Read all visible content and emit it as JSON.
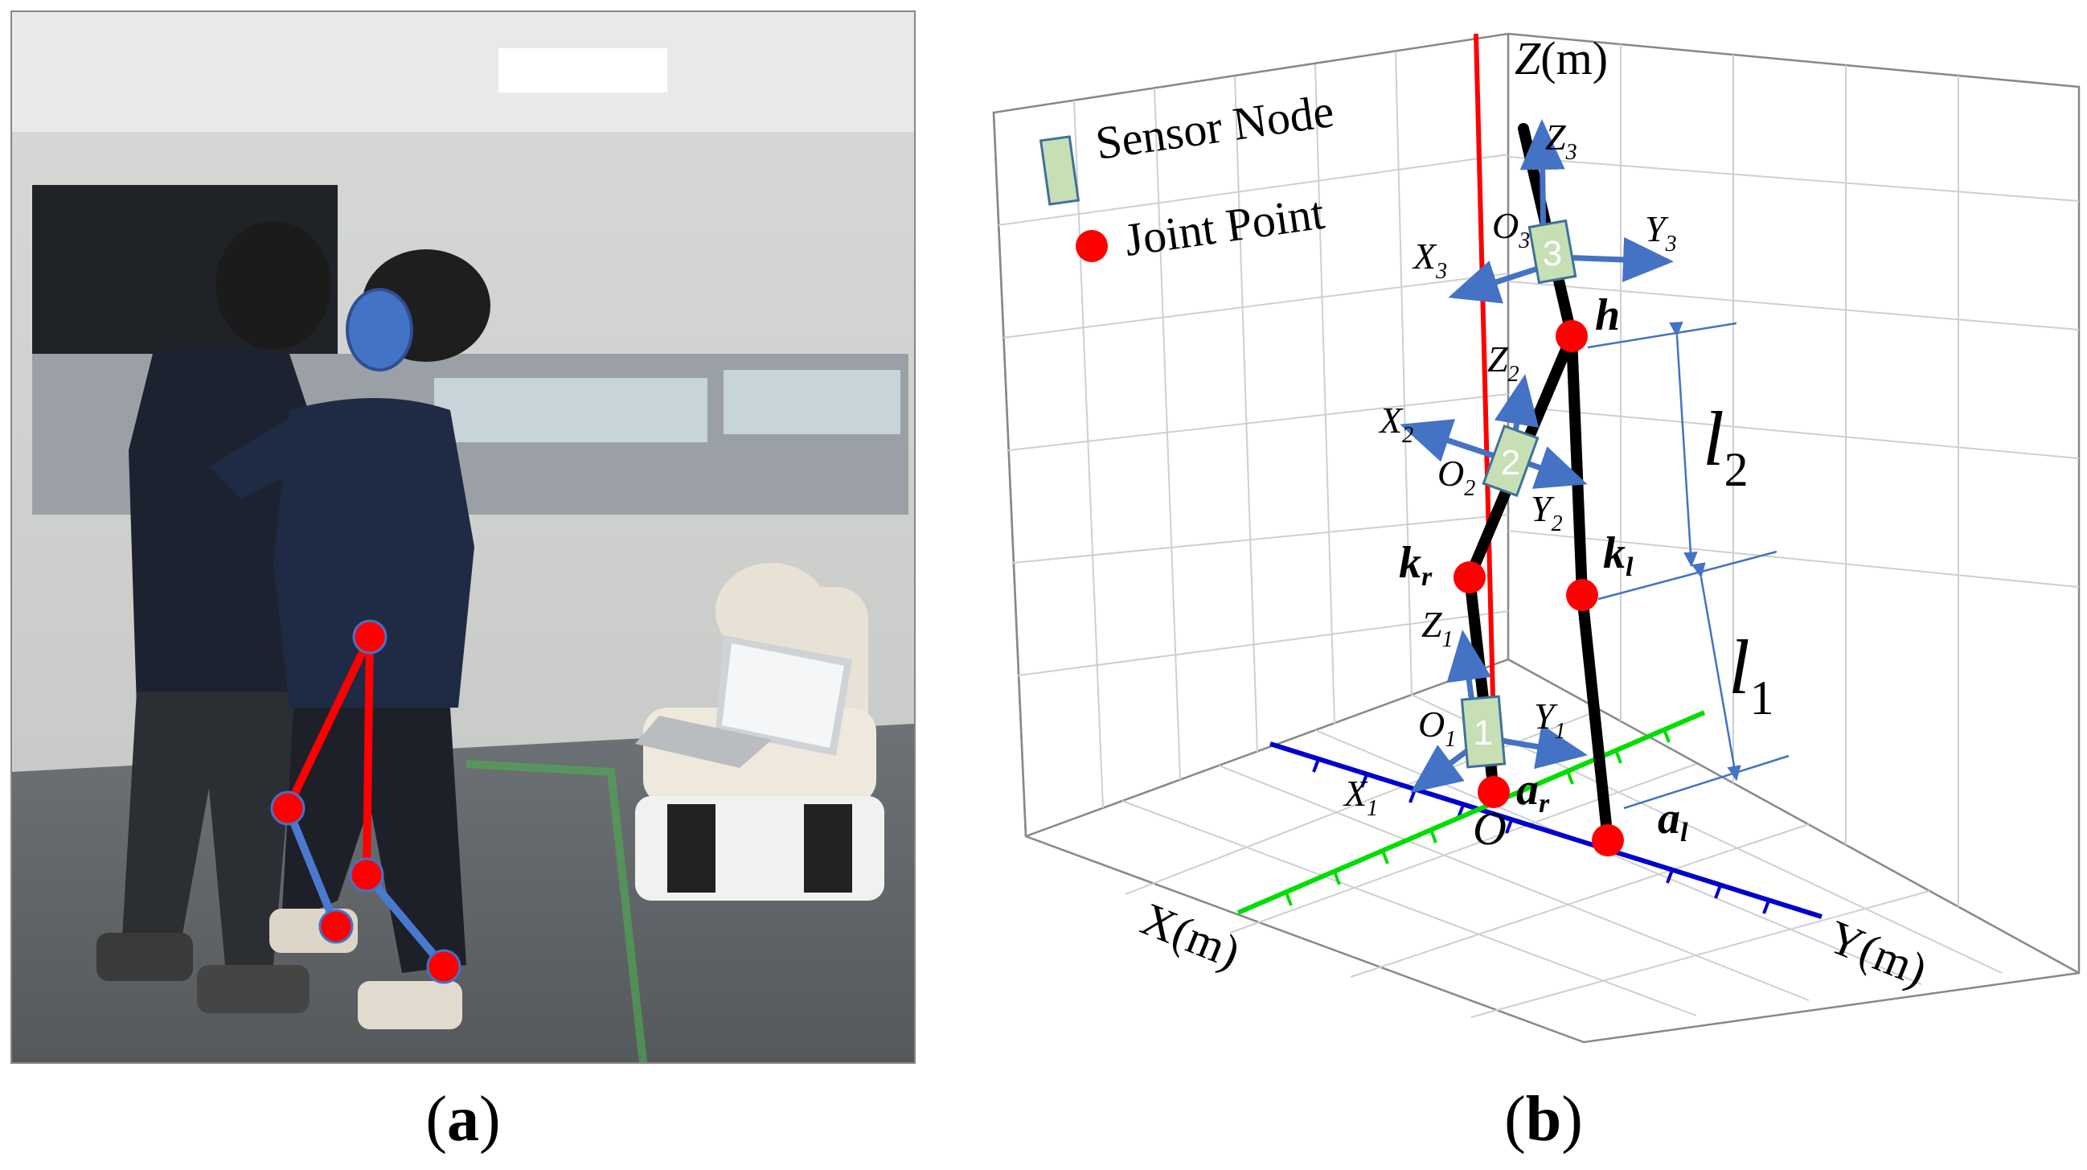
{
  "panel_a": {
    "caption_open": "(",
    "caption_letter": "a",
    "caption_close": ")"
  },
  "panel_b": {
    "caption_open": "(",
    "caption_letter": "b",
    "caption_close": ")",
    "legend": {
      "sensor_node": "Sensor Node",
      "joint_point": "Joint Point"
    },
    "axes": {
      "z": "Z",
      "z_unit": "(m)",
      "x": "X(m)",
      "y": "Y(m)",
      "origin": "O"
    },
    "nodes": [
      {
        "number": "1",
        "origin": "O",
        "origin_sub": "1",
        "x": "X",
        "x_sub": "1",
        "y": "Y",
        "y_sub": "1",
        "z": "Z",
        "z_sub": "1"
      },
      {
        "number": "2",
        "origin": "O",
        "origin_sub": "2",
        "x": "X",
        "x_sub": "2",
        "y": "Y",
        "y_sub": "2",
        "z": "Z",
        "z_sub": "2"
      },
      {
        "number": "3",
        "origin": "O",
        "origin_sub": "3",
        "x": "X",
        "x_sub": "3",
        "y": "Y",
        "y_sub": "3",
        "z": "Z",
        "z_sub": "3"
      }
    ],
    "joints": {
      "hip": "h",
      "knee_right": "k",
      "knee_right_sub": "r",
      "knee_left": "k",
      "knee_left_sub": "l",
      "ankle_right": "a",
      "ankle_right_sub": "r",
      "ankle_left": "a",
      "ankle_left_sub": "l"
    },
    "lengths": {
      "l1": "l",
      "l1_sub": "1",
      "l2": "l",
      "l2_sub": "2"
    },
    "colors": {
      "joint": "#ff0000",
      "sensor": "#c6dfb4",
      "sensor_border": "#41719c",
      "arrow": "#4472c4",
      "x_axis": "#00dd00",
      "y_axis": "#0000cc",
      "z_axis": "#ff0000",
      "limb": "#000000"
    }
  }
}
